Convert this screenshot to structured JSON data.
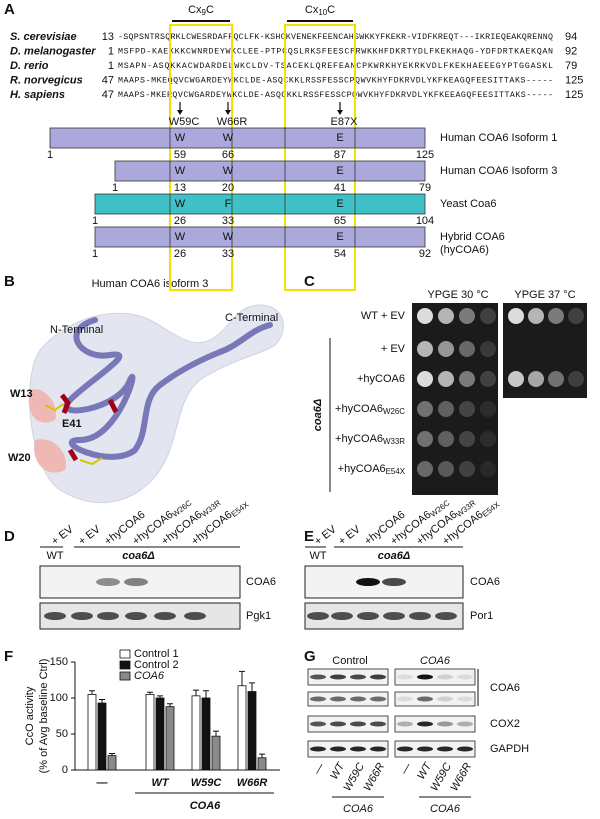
{
  "panel_labels": [
    "A",
    "B",
    "C",
    "D",
    "E",
    "F",
    "G"
  ],
  "alignment": {
    "motifs": [
      {
        "prefix": "Cx",
        "sub": "9",
        "suffix": "C"
      },
      {
        "prefix": "Cx",
        "sub": "10",
        "suffix": "C"
      }
    ],
    "rows": [
      {
        "species": "S. cerevisiae",
        "start": 13,
        "sequence": "-SQPSNTRSQRKLCWESRDAFFQCLFK-KSHCKVENEKFEENCAHSWKKYFKEKR-VIDFKREQT---IKRIEQEAKQRENNQ",
        "end": 94
      },
      {
        "species": "D. melanogaster",
        "start": 1,
        "sequence": "MSFPD-KAEKKKCWNRDEYWKCLEE-PTPCQSLRKSFEESCFRWKKHFDKRTYDLFKEKHAQG-YDFDRTKAEKQAN",
        "end": 92
      },
      {
        "species": "D. rerio",
        "start": 1,
        "sequence": "MSAPN-ASQKKACWDARDELWKCLDV-TSACEKLQREFEANCPKWRKHYEKRKVDLFKEKHAEEEGYPTGGASKL",
        "end": 79
      },
      {
        "species": "R. norvegicus",
        "start": 47,
        "sequence": "MAAPS-MKEQQVCWGARDEYWKCLDE-ASQCKKLRSSFESSCPQWVKHYFDKRVDLYKFKEAGQFEESITTAKS-----",
        "end": 125
      },
      {
        "species": "H. sapiens",
        "start": 47,
        "sequence": "MAAPS-MKERQVCWGARDEYWKCLDE-ASQCKKLRSSFESSCPQWVKHYFDKRVDLYKFKEEAGQFEESITTAKS-----",
        "end": 125
      }
    ],
    "mutations": [
      "W59C",
      "W66R",
      "E87X"
    ]
  },
  "constructs": [
    {
      "name": [
        "Human COA6 Isoform 1"
      ],
      "color": "#aba8dc",
      "start": 1,
      "end": 125,
      "residues": [
        {
          "letter": "W",
          "position": 59
        },
        {
          "letter": "W",
          "position": 66
        },
        {
          "letter": "E",
          "position": 87
        }
      ]
    },
    {
      "name": [
        "Human COA6 Isoform 3"
      ],
      "color": "#aba8dc",
      "start": 1,
      "end": 79,
      "residues": [
        {
          "letter": "W",
          "position": 13
        },
        {
          "letter": "W",
          "position": 20
        },
        {
          "letter": "E",
          "position": 41
        }
      ]
    },
    {
      "name": [
        "Yeast Coa6"
      ],
      "color": "#3fc1c6",
      "start": 1,
      "end": 104,
      "residues": [
        {
          "letter": "W",
          "position": 26
        },
        {
          "letter": "F",
          "position": 33
        },
        {
          "letter": "E",
          "position": 65
        }
      ]
    },
    {
      "name": [
        "Hybrid COA6",
        "(hyCOA6)"
      ],
      "color": "#aba8dc",
      "start": 1,
      "end": 92,
      "residues": [
        {
          "letter": "W",
          "position": 26
        },
        {
          "letter": "W",
          "position": 33
        },
        {
          "letter": "E",
          "position": 54
        }
      ]
    }
  ],
  "structure": {
    "title": "Human COA6 isoform 3",
    "labels": [
      "N-Terminal",
      "C-Terminal",
      "W13",
      "W20",
      "E41"
    ]
  },
  "growth": {
    "conditions": [
      "YPGE 30 °C",
      "YPGE 37 °C"
    ],
    "strains": [
      {
        "base": "WT + EV"
      },
      {
        "base": "+ EV"
      },
      {
        "base": "+hyCOA6"
      },
      {
        "base": "+hyCOA6",
        "sub": "W26C"
      },
      {
        "base": "+hyCOA6",
        "sub": "W33R"
      },
      {
        "base": "+hyCOA6",
        "sub": "E54X"
      }
    ],
    "mutant": "coa6Δ"
  },
  "blot_d": {
    "lanes": [
      {
        "base": "+ EV"
      },
      {
        "base": "+ EV"
      },
      {
        "base": "+hyCOA6"
      },
      {
        "base": "+hyCOA6",
        "sub": "W26C"
      },
      {
        "base": "+hyCOA6",
        "sub": "W33R"
      },
      {
        "base": "+hyCOA6",
        "sub": "E54X"
      }
    ],
    "wt": "WT",
    "mutant": "coa6Δ",
    "bands": [
      "COA6",
      "Pgk1"
    ]
  },
  "blot_e": {
    "lanes": [
      {
        "base": "+ EV"
      },
      {
        "base": "+ EV"
      },
      {
        "base": "+hyCOA6"
      },
      {
        "base": "+hyCOA6",
        "sub": "W26C"
      },
      {
        "base": "+hyCOA6",
        "sub": "W33R"
      },
      {
        "base": "+hyCOA6",
        "sub": "E54X"
      }
    ],
    "wt": "WT",
    "mutant": "coa6Δ",
    "bands": [
      "COA6",
      "Por1"
    ]
  },
  "chart_data": {
    "type": "bar",
    "y_label": [
      "CcO activity",
      "(% of Avg baseline Ctrl)"
    ],
    "categories": [
      "—",
      "WT",
      "W59C",
      "W66R"
    ],
    "group_label": "COA6",
    "ylim": [
      0,
      150
    ],
    "yticks": [
      0,
      50,
      100,
      150
    ],
    "series": [
      {
        "name": "Control 1",
        "color": "#ffffff",
        "values": [
          105,
          105,
          103,
          117
        ],
        "errors": [
          5,
          3,
          8,
          20
        ]
      },
      {
        "name": "Control 2",
        "color": "#111111",
        "values": [
          93,
          100,
          100,
          109
        ],
        "errors": [
          5,
          3,
          10,
          12
        ]
      },
      {
        "name": "COA6",
        "color": "#8a8a8a",
        "values": [
          20,
          88,
          47,
          17
        ],
        "errors": [
          3,
          4,
          7,
          5
        ]
      }
    ]
  },
  "blot_g": {
    "groups": [
      "Control",
      "COA6"
    ],
    "lanes": [
      "—",
      "WT",
      "W59C",
      "W66R"
    ],
    "bands": [
      "COA6",
      "COX2",
      "GAPDH"
    ],
    "genotype": "COA6"
  }
}
